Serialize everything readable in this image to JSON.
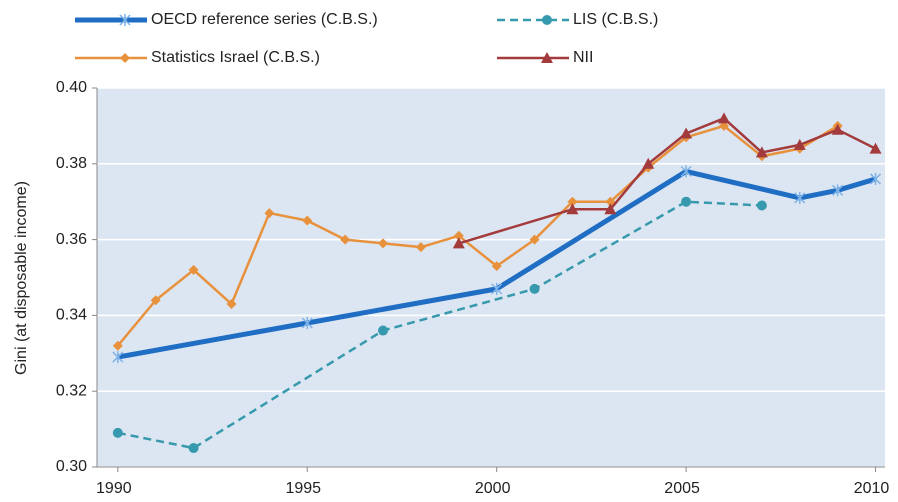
{
  "chart_data": {
    "type": "line",
    "ylabel": "Gini (at disposable income)",
    "xlim": [
      1989.45,
      2010.25
    ],
    "xticks": [
      1990,
      1995,
      2000,
      2005,
      2010
    ],
    "ylim": [
      0.3,
      0.4
    ],
    "yticks": [
      {
        "value": 0.3,
        "label": "0.30"
      },
      {
        "value": 0.32,
        "label": "0.32"
      },
      {
        "value": 0.34,
        "label": "0.34"
      },
      {
        "value": 0.36,
        "label": "0.36"
      },
      {
        "value": 0.38,
        "label": "0.38"
      },
      {
        "value": 0.4,
        "label": "0.40"
      }
    ],
    "grid": true,
    "series": [
      {
        "name": "OECD reference series  (C.B.S.)",
        "color": "#1f6ec4",
        "width": 5,
        "dashed": false,
        "marker": "star",
        "x": [
          1990,
          1995,
          2000,
          2005,
          2008,
          2009,
          2010
        ],
        "values": [
          0.329,
          0.338,
          0.347,
          0.378,
          0.371,
          0.373,
          0.376
        ]
      },
      {
        "name": "LIS (C.B.S.)",
        "color": "#3799ad",
        "width": 2.5,
        "dashed": true,
        "marker": "circle",
        "x": [
          1990,
          1992,
          1997,
          2001,
          2005,
          2007
        ],
        "values": [
          0.309,
          0.305,
          0.336,
          0.347,
          0.37,
          0.369
        ]
      },
      {
        "name": "Statistics Israel (C.B.S.)",
        "color": "#e8913c",
        "width": 2.5,
        "dashed": false,
        "marker": "diamond",
        "x": [
          1990,
          1991,
          1992,
          1993,
          1994,
          1995,
          1996,
          1997,
          1998,
          1999,
          2000,
          2001,
          2002,
          2003,
          2004,
          2005,
          2006,
          2007,
          2008,
          2009
        ],
        "values": [
          0.332,
          0.344,
          0.352,
          0.343,
          0.367,
          0.365,
          0.36,
          0.359,
          0.358,
          0.361,
          0.353,
          0.36,
          0.37,
          0.37,
          0.379,
          0.387,
          0.39,
          0.382,
          0.384,
          0.39
        ]
      },
      {
        "name": "NII",
        "color": "#a33a3c",
        "width": 2.5,
        "dashed": false,
        "marker": "triangle",
        "x": [
          1999,
          2002,
          2003,
          2004,
          2005,
          2006,
          2007,
          2008,
          2009,
          2010
        ],
        "values": [
          0.359,
          0.368,
          0.368,
          0.38,
          0.388,
          0.392,
          0.383,
          0.385,
          0.389,
          0.384
        ]
      }
    ]
  }
}
